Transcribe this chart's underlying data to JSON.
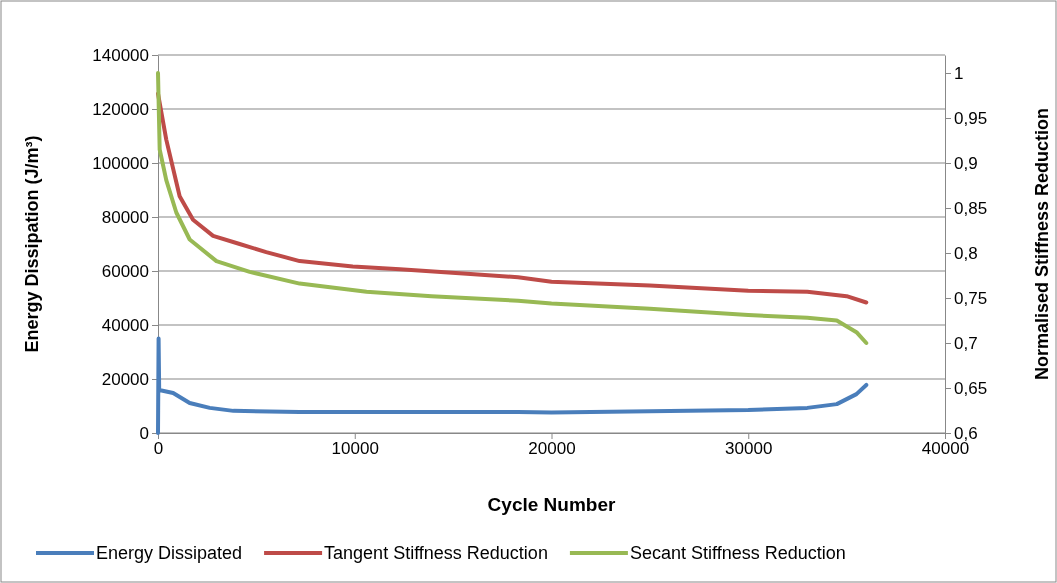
{
  "chart_data": {
    "type": "line",
    "xlabel": "Cycle Number",
    "ylabel": "Energy Dissipation (J/m³)",
    "y2label": "Normalised Stiffness Reduction",
    "xlim": [
      0,
      40000
    ],
    "xticks": [
      0,
      10000,
      20000,
      30000,
      40000
    ],
    "ylim": [
      0,
      140000
    ],
    "yticks": [
      0,
      20000,
      40000,
      60000,
      80000,
      100000,
      120000,
      140000
    ],
    "y2lim": [
      0.6,
      1.02
    ],
    "y2ticks": [
      {
        "value": 0.6,
        "label": "0,6"
      },
      {
        "value": 0.65,
        "label": "0,65"
      },
      {
        "value": 0.7,
        "label": "0,7"
      },
      {
        "value": 0.75,
        "label": "0,75"
      },
      {
        "value": 0.8,
        "label": "0,8"
      },
      {
        "value": 0.85,
        "label": "0,85"
      },
      {
        "value": 0.9,
        "label": "0,9"
      },
      {
        "value": 0.95,
        "label": "0,95"
      },
      {
        "value": 1,
        "label": "1"
      }
    ],
    "grid": "y",
    "legend": "bottom",
    "marker": "none",
    "line_style": "solid",
    "series": [
      {
        "name": "Energy Dissipated",
        "color": "#4a7ebb",
        "x": [
          0,
          30,
          60,
          770,
          1610,
          2630,
          3830,
          7200,
          18300,
          20000,
          30000,
          33000,
          34500,
          35500,
          36000
        ],
        "values": [
          0,
          35000,
          15900,
          14800,
          11100,
          9300,
          8200,
          7800,
          7800,
          7600,
          8500,
          9300,
          10700,
          14400,
          17800
        ]
      },
      {
        "name": "Tangent Stiffness Reduction",
        "color": "#be4b48",
        "axis": "y2",
        "x": [
          0,
          420,
          1100,
          1780,
          2800,
          4150,
          5500,
          7200,
          9900,
          12300,
          15700,
          18300,
          20000,
          25000,
          30000,
          33000,
          35000,
          36000
        ],
        "values": [
          0.977,
          0.926,
          0.863,
          0.837,
          0.819,
          0.81,
          0.801,
          0.791,
          0.785,
          0.782,
          0.777,
          0.773,
          0.768,
          0.764,
          0.758,
          0.757,
          0.752,
          0.745
        ]
      },
      {
        "name": "Secant Stiffness Reduction",
        "color": "#98b954",
        "axis": "y2",
        "x": [
          0,
          85,
          420,
          930,
          1610,
          2970,
          4660,
          7200,
          10600,
          13900,
          18300,
          20000,
          25000,
          30000,
          33000,
          34500,
          35500,
          36000
        ],
        "values": [
          1.0,
          0.915,
          0.881,
          0.845,
          0.815,
          0.791,
          0.779,
          0.766,
          0.757,
          0.752,
          0.747,
          0.744,
          0.738,
          0.731,
          0.728,
          0.725,
          0.712,
          0.7
        ]
      }
    ]
  }
}
